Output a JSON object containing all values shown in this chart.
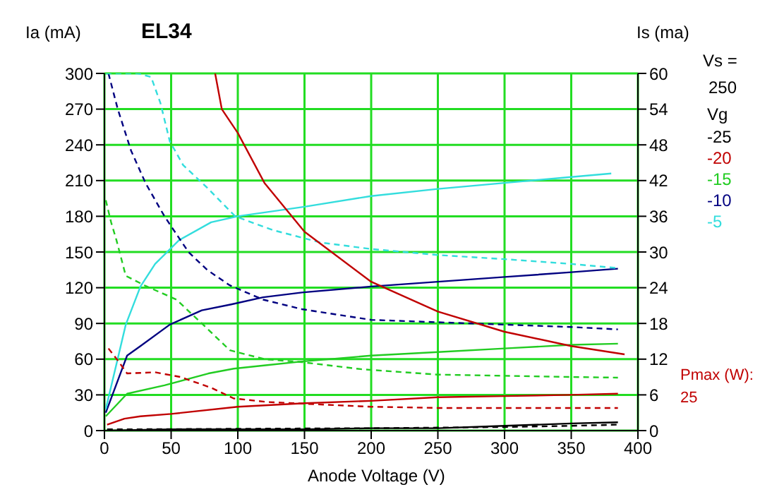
{
  "chart_data": {
    "type": "line",
    "title": "EL34",
    "xlabel": "Anode Voltage (V)",
    "ylabel": "Ia (mA)",
    "y2label": "Is (ma)",
    "legend_title": "Vg",
    "xlim": [
      0,
      400
    ],
    "xticks": [
      0,
      50,
      100,
      150,
      200,
      250,
      300,
      350,
      400
    ],
    "ylim": [
      0,
      300
    ],
    "yticks": [
      0,
      30,
      60,
      90,
      120,
      150,
      180,
      210,
      240,
      270,
      300
    ],
    "y2lim": [
      0,
      60
    ],
    "y2ticks": [
      0,
      6,
      12,
      18,
      24,
      30,
      36,
      42,
      48,
      54,
      60
    ],
    "grid": true,
    "legend": "right",
    "marker": "none",
    "annotations": [
      "Vs =",
      "250",
      "Pmax (W):",
      "25"
    ],
    "series": [
      {
        "name": "-25",
        "color": "#000000",
        "line_style": "solid",
        "x": [
          2,
          50,
          100,
          150,
          200,
          250,
          300,
          350,
          385
        ],
        "values": [
          0,
          1,
          1,
          1,
          2,
          2,
          4,
          6,
          7
        ]
      },
      {
        "name": "-20",
        "color": "#c00000",
        "line_style": "solid",
        "x": [
          2,
          15,
          27,
          50,
          100,
          150,
          200,
          250,
          300,
          350,
          385
        ],
        "values": [
          5,
          10,
          12,
          14,
          20,
          23,
          25,
          28,
          29,
          30,
          31
        ]
      },
      {
        "name": "-15",
        "color": "#22cc22",
        "line_style": "solid",
        "x": [
          1,
          17,
          45,
          78,
          97,
          122,
          148,
          200,
          250,
          300,
          350,
          385
        ],
        "values": [
          12,
          31,
          38,
          48,
          52,
          55,
          58,
          63,
          66,
          69,
          72,
          73
        ]
      },
      {
        "name": "-10",
        "color": "#000080",
        "line_style": "solid",
        "x": [
          1,
          17,
          27,
          49,
          73,
          95,
          119,
          148,
          200,
          250,
          300,
          350,
          385
        ],
        "values": [
          15,
          63,
          71,
          89,
          101,
          106,
          112,
          116,
          121,
          125,
          129,
          133,
          136
        ]
      },
      {
        "name": "-5",
        "color": "#33dddd",
        "line_style": "solid",
        "x": [
          1,
          16,
          27,
          38,
          56,
          80,
          100,
          150,
          200,
          250,
          300,
          350,
          380
        ],
        "values": [
          18,
          89,
          121,
          140,
          160,
          175,
          180,
          188,
          197,
          203,
          208,
          213,
          216
        ]
      },
      {
        "color": "#000000",
        "line_style": "dashed",
        "axis": "y2",
        "x": [
          2,
          100,
          200,
          250,
          300,
          350,
          385
        ],
        "values": [
          0.2,
          0.3,
          0.4,
          0.5,
          0.6,
          0.8,
          1
        ]
      },
      {
        "color": "#c00000",
        "line_style": "dashed",
        "axis": "y2",
        "x": [
          3,
          10,
          17,
          38,
          57,
          80,
          97,
          122,
          200,
          250,
          300,
          350,
          385
        ],
        "values": [
          13.8,
          11.8,
          9.6,
          9.8,
          9,
          7.2,
          5.4,
          4.8,
          4,
          3.8,
          3.8,
          3.8,
          3.8
        ]
      },
      {
        "color": "#22cc22",
        "line_style": "dashed",
        "axis": "y2",
        "x": [
          1,
          5,
          9,
          16,
          30,
          54,
          73,
          94,
          120,
          148,
          193,
          250,
          300,
          350,
          385
        ],
        "values": [
          38.7,
          35,
          32,
          26,
          24.4,
          22,
          18,
          13.5,
          12,
          11.5,
          10.3,
          9.4,
          9.2,
          9,
          8.9
        ]
      },
      {
        "color": "#000080",
        "line_style": "dashed",
        "axis": "y2",
        "x": [
          3,
          10,
          20,
          31,
          45,
          63,
          77,
          94,
          119,
          148,
          200,
          250,
          300,
          350,
          385
        ],
        "values": [
          60,
          54,
          47,
          41.5,
          36,
          30,
          27,
          24.4,
          22,
          20.4,
          18.6,
          18.2,
          17.8,
          17.4,
          17
        ]
      },
      {
        "color": "#33dddd",
        "line_style": "dashed",
        "axis": "y2",
        "x": [
          1,
          25,
          35,
          42,
          49,
          59,
          77,
          98,
          126,
          162,
          200,
          250,
          300,
          350,
          385
        ],
        "values": [
          60,
          60,
          59.4,
          55,
          48.6,
          44.6,
          40.8,
          36,
          33.7,
          31.6,
          30.5,
          29.5,
          28.8,
          28,
          27.3
        ]
      },
      {
        "color": "#c00000",
        "line_style": "solid",
        "x": [
          83,
          88,
          100,
          120,
          150,
          200,
          250,
          300,
          350,
          390
        ],
        "values": [
          300,
          270,
          250,
          208,
          167,
          125,
          100,
          83,
          71,
          64
        ]
      }
    ]
  }
}
